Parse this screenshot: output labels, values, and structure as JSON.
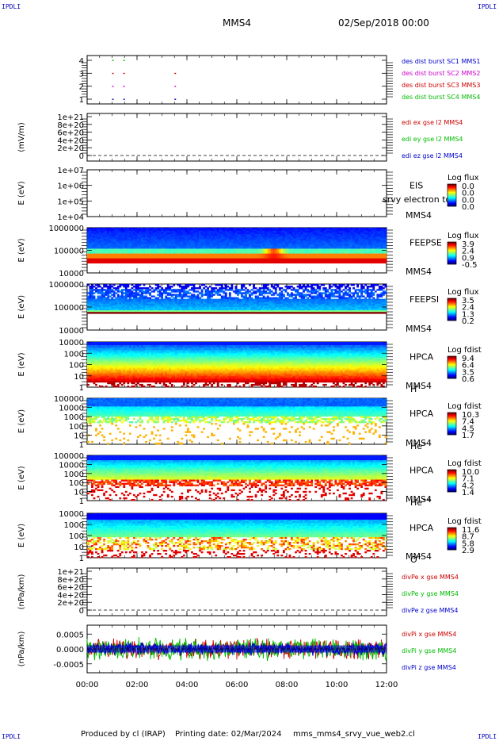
{
  "corner_label": "IPDLI",
  "header": {
    "spacecraft": "MMS4",
    "datetime": "02/Sep/2018 00:00"
  },
  "footer": {
    "produced_by": "Produced by cl (IRAP)",
    "printing_date": "Printing date: 02/Mar/2024",
    "script": "mms_mms4_srvy_vue_web2.cl"
  },
  "chart_data": {
    "type": "multi-panel time series and spectrograms",
    "x_axis": {
      "range": [
        "00:00",
        "12:00"
      ],
      "ticks": [
        "00:00",
        "02:00",
        "04:00",
        "06:00",
        "08:00",
        "10:00",
        "12:00"
      ]
    },
    "panels": [
      {
        "id": "burst",
        "kind": "burst",
        "ytick_labels": [
          "4",
          "3",
          "2",
          "1"
        ],
        "legend": [
          {
            "text": "des dist burst SC1 MMS1",
            "color": "#0000cc"
          },
          {
            "text": "des dist burst SC2 MMS2",
            "color": "#cc00cc"
          },
          {
            "text": "des dist burst SC3 MMS3",
            "color": "#cc0000"
          },
          {
            "text": "des dist burst SC4 MMS4",
            "color": "#00bb00"
          }
        ],
        "markers": [
          {
            "sc": 4,
            "times_h": [
              1.0,
              1.45
            ],
            "color": "#00bb00"
          },
          {
            "sc": 3,
            "times_h": [
              1.0,
              1.45,
              3.5
            ],
            "color": "#cc0000"
          },
          {
            "sc": 2,
            "times_h": [
              1.0,
              1.45,
              3.5
            ],
            "color": "#cc00cc"
          },
          {
            "sc": 1,
            "times_h": [
              1.0,
              1.45,
              3.5
            ],
            "color": "#0000cc"
          }
        ]
      },
      {
        "id": "edi",
        "kind": "line",
        "ylabel": "(mV/m)",
        "ytick_labels": [
          "1e+21",
          "8e+20",
          "6e+20",
          "4e+20",
          "2e+20",
          "0"
        ],
        "ylim": [
          0,
          1e+21
        ],
        "legend": [
          {
            "text": "edi ex gse l2 MMS4",
            "color": "#cc0000"
          },
          {
            "text": "edi ey gse l2 MMS4",
            "color": "#00bb00"
          },
          {
            "text": "edi ez gse l2 MMS4",
            "color": "#0000cc"
          }
        ]
      },
      {
        "id": "eis",
        "kind": "spectrogram",
        "ylabel": "E (eV)",
        "ytick_labels": [
          "1e+07",
          "1e+06",
          "1e+05",
          "1e+04"
        ],
        "name": [
          "EIS",
          "MMS4"
        ],
        "overlay": "srvy electron tof",
        "cbar_title": "Log flux",
        "cbar_ticks": [
          "0.0",
          "0.0",
          "0.0",
          "0.0"
        ],
        "empty": true
      },
      {
        "id": "feepse",
        "kind": "spectrogram",
        "ylabel": "E (eV)",
        "ytick_labels": [
          "1000000",
          "100000",
          "10000"
        ],
        "name": [
          "FEEPSE",
          "MMS4"
        ],
        "cbar_title": "Log flux",
        "cbar_ticks": [
          "3.9",
          "2.4",
          "0.9",
          "-0.5"
        ],
        "profile": "feepse"
      },
      {
        "id": "feepsi",
        "kind": "spectrogram",
        "ylabel": "E (eV)",
        "ytick_labels": [
          "1000000",
          "100000",
          "10000"
        ],
        "name": [
          "FEEPSI",
          "MMS4"
        ],
        "cbar_title": "Log flux",
        "cbar_ticks": [
          "3.5",
          "2.4",
          "1.3",
          "0.2"
        ],
        "profile": "feepsi"
      },
      {
        "id": "hpca_h",
        "kind": "spectrogram",
        "ylabel": "E (eV)",
        "ytick_labels": [
          "10000",
          "1000",
          "100",
          "10",
          "1"
        ],
        "name": [
          "HPCA",
          "MMS4"
        ],
        "species": "H",
        "species_sup": "+",
        "cbar_title": "Log fdist",
        "cbar_ticks": [
          "9.4",
          "6.4",
          "3.5",
          "0.6"
        ],
        "profile": "hplus"
      },
      {
        "id": "hpca_he1",
        "kind": "spectrogram",
        "ylabel": "E (eV)",
        "ytick_labels": [
          "100000",
          "10000",
          "1000",
          "100",
          "10",
          "1"
        ],
        "name": [
          "HPCA",
          "MMS4"
        ],
        "species": "He",
        "species_sup": "+",
        "cbar_title": "Log fdist",
        "cbar_ticks": [
          "10.3",
          "7.4",
          "4.5",
          "1.7"
        ],
        "profile": "heplus"
      },
      {
        "id": "hpca_he2",
        "kind": "spectrogram",
        "ylabel": "E (eV)",
        "ytick_labels": [
          "100000",
          "10000",
          "1000",
          "100",
          "10",
          "1"
        ],
        "name": [
          "HPCA",
          "MMS4"
        ],
        "species": "He",
        "species_sup": "++",
        "cbar_title": "Log fdist",
        "cbar_ticks": [
          "10.0",
          "7.1",
          "4.2",
          "1.4"
        ],
        "profile": "heplusplus"
      },
      {
        "id": "hpca_o",
        "kind": "spectrogram",
        "ylabel": "E (eV)",
        "ytick_labels": [
          "10000",
          "1000",
          "100",
          "10",
          "1"
        ],
        "name": [
          "HPCA",
          "MMS4"
        ],
        "species": "O",
        "species_sup": "+",
        "cbar_title": "Log fdist",
        "cbar_ticks": [
          "11.6",
          "8.7",
          "5.8",
          "2.9"
        ],
        "profile": "oplus"
      },
      {
        "id": "divpe",
        "kind": "line",
        "ylabel": "(nPa/km)",
        "ytick_labels": [
          "1e+21",
          "8e+20",
          "6e+20",
          "4e+20",
          "2e+20",
          "0"
        ],
        "ylim": [
          0,
          1e+21
        ],
        "legend": [
          {
            "text": "divPe x gse MMS4",
            "color": "#cc0000"
          },
          {
            "text": "divPe y gse MMS4",
            "color": "#00bb00"
          },
          {
            "text": "divPe z gse MMS4",
            "color": "#0000cc"
          }
        ]
      },
      {
        "id": "divpi",
        "kind": "noise",
        "ylabel": "(nPa/km)",
        "ytick_labels": [
          "0.0005",
          "0.0000",
          "-0.0005"
        ],
        "ylim": [
          -0.0008,
          0.0008
        ],
        "legend": [
          {
            "text": "divPi x gse MMS4",
            "color": "#cc0000"
          },
          {
            "text": "divPi y gse MMS4",
            "color": "#00bb00"
          },
          {
            "text": "divPi z gse MMS4",
            "color": "#0000cc"
          }
        ]
      }
    ]
  }
}
